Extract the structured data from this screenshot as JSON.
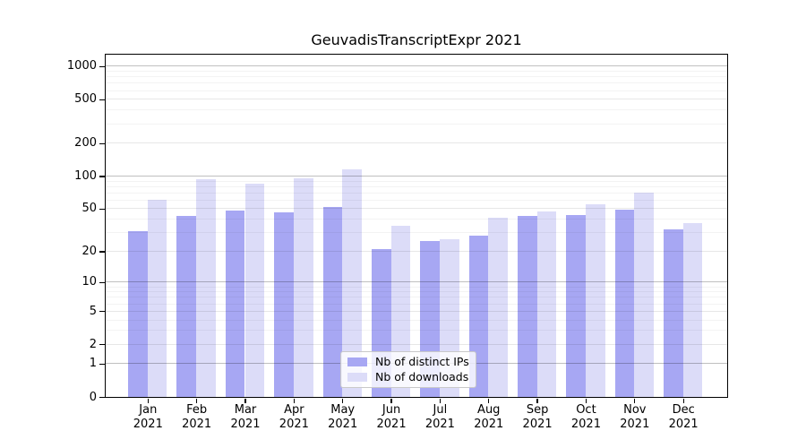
{
  "chart_data": {
    "type": "bar",
    "title": "GeuvadisTranscriptExpr 2021",
    "categories": [
      "Jan 2021",
      "Feb 2021",
      "Mar 2021",
      "Apr 2021",
      "May 2021",
      "Jun 2021",
      "Jul 2021",
      "Aug 2021",
      "Sep 2021",
      "Oct 2021",
      "Nov 2021",
      "Dec 2021"
    ],
    "x_tick_top": [
      "Jan",
      "Feb",
      "Mar",
      "Apr",
      "May",
      "Jun",
      "Jul",
      "Aug",
      "Sep",
      "Oct",
      "Nov",
      "Dec"
    ],
    "x_tick_bottom": "2021",
    "series": [
      {
        "name": "Nb of distinct IPs",
        "color": "#a7a7f3",
        "values": [
          31,
          43,
          48,
          46,
          52,
          21,
          25,
          28,
          43,
          44,
          49,
          32
        ]
      },
      {
        "name": "Nb of downloads",
        "color": "#dcdcf8",
        "values": [
          61,
          93,
          85,
          95,
          115,
          35,
          26,
          41,
          47,
          55,
          70,
          37
        ]
      }
    ],
    "yscale": "log1p",
    "ylim": [
      0,
      1290
    ],
    "y_ticks": [
      0,
      1,
      2,
      5,
      10,
      20,
      50,
      100,
      200,
      500,
      1000
    ],
    "y_ticks_major": [
      1,
      10,
      100,
      1000
    ],
    "y_ticks_minor": [
      3,
      4,
      6,
      7,
      8,
      9,
      30,
      40,
      60,
      70,
      80,
      90,
      300,
      400,
      600,
      700,
      800,
      900
    ],
    "grid": true,
    "legend_location": "lower center"
  },
  "colors": {
    "grid_major": "#c0c0c0",
    "grid_mid": "#e7e7e7",
    "grid_minor": "#f3f3f3",
    "axis": "#000000",
    "text": "#000000",
    "legend_border": "#c9c9c9"
  }
}
